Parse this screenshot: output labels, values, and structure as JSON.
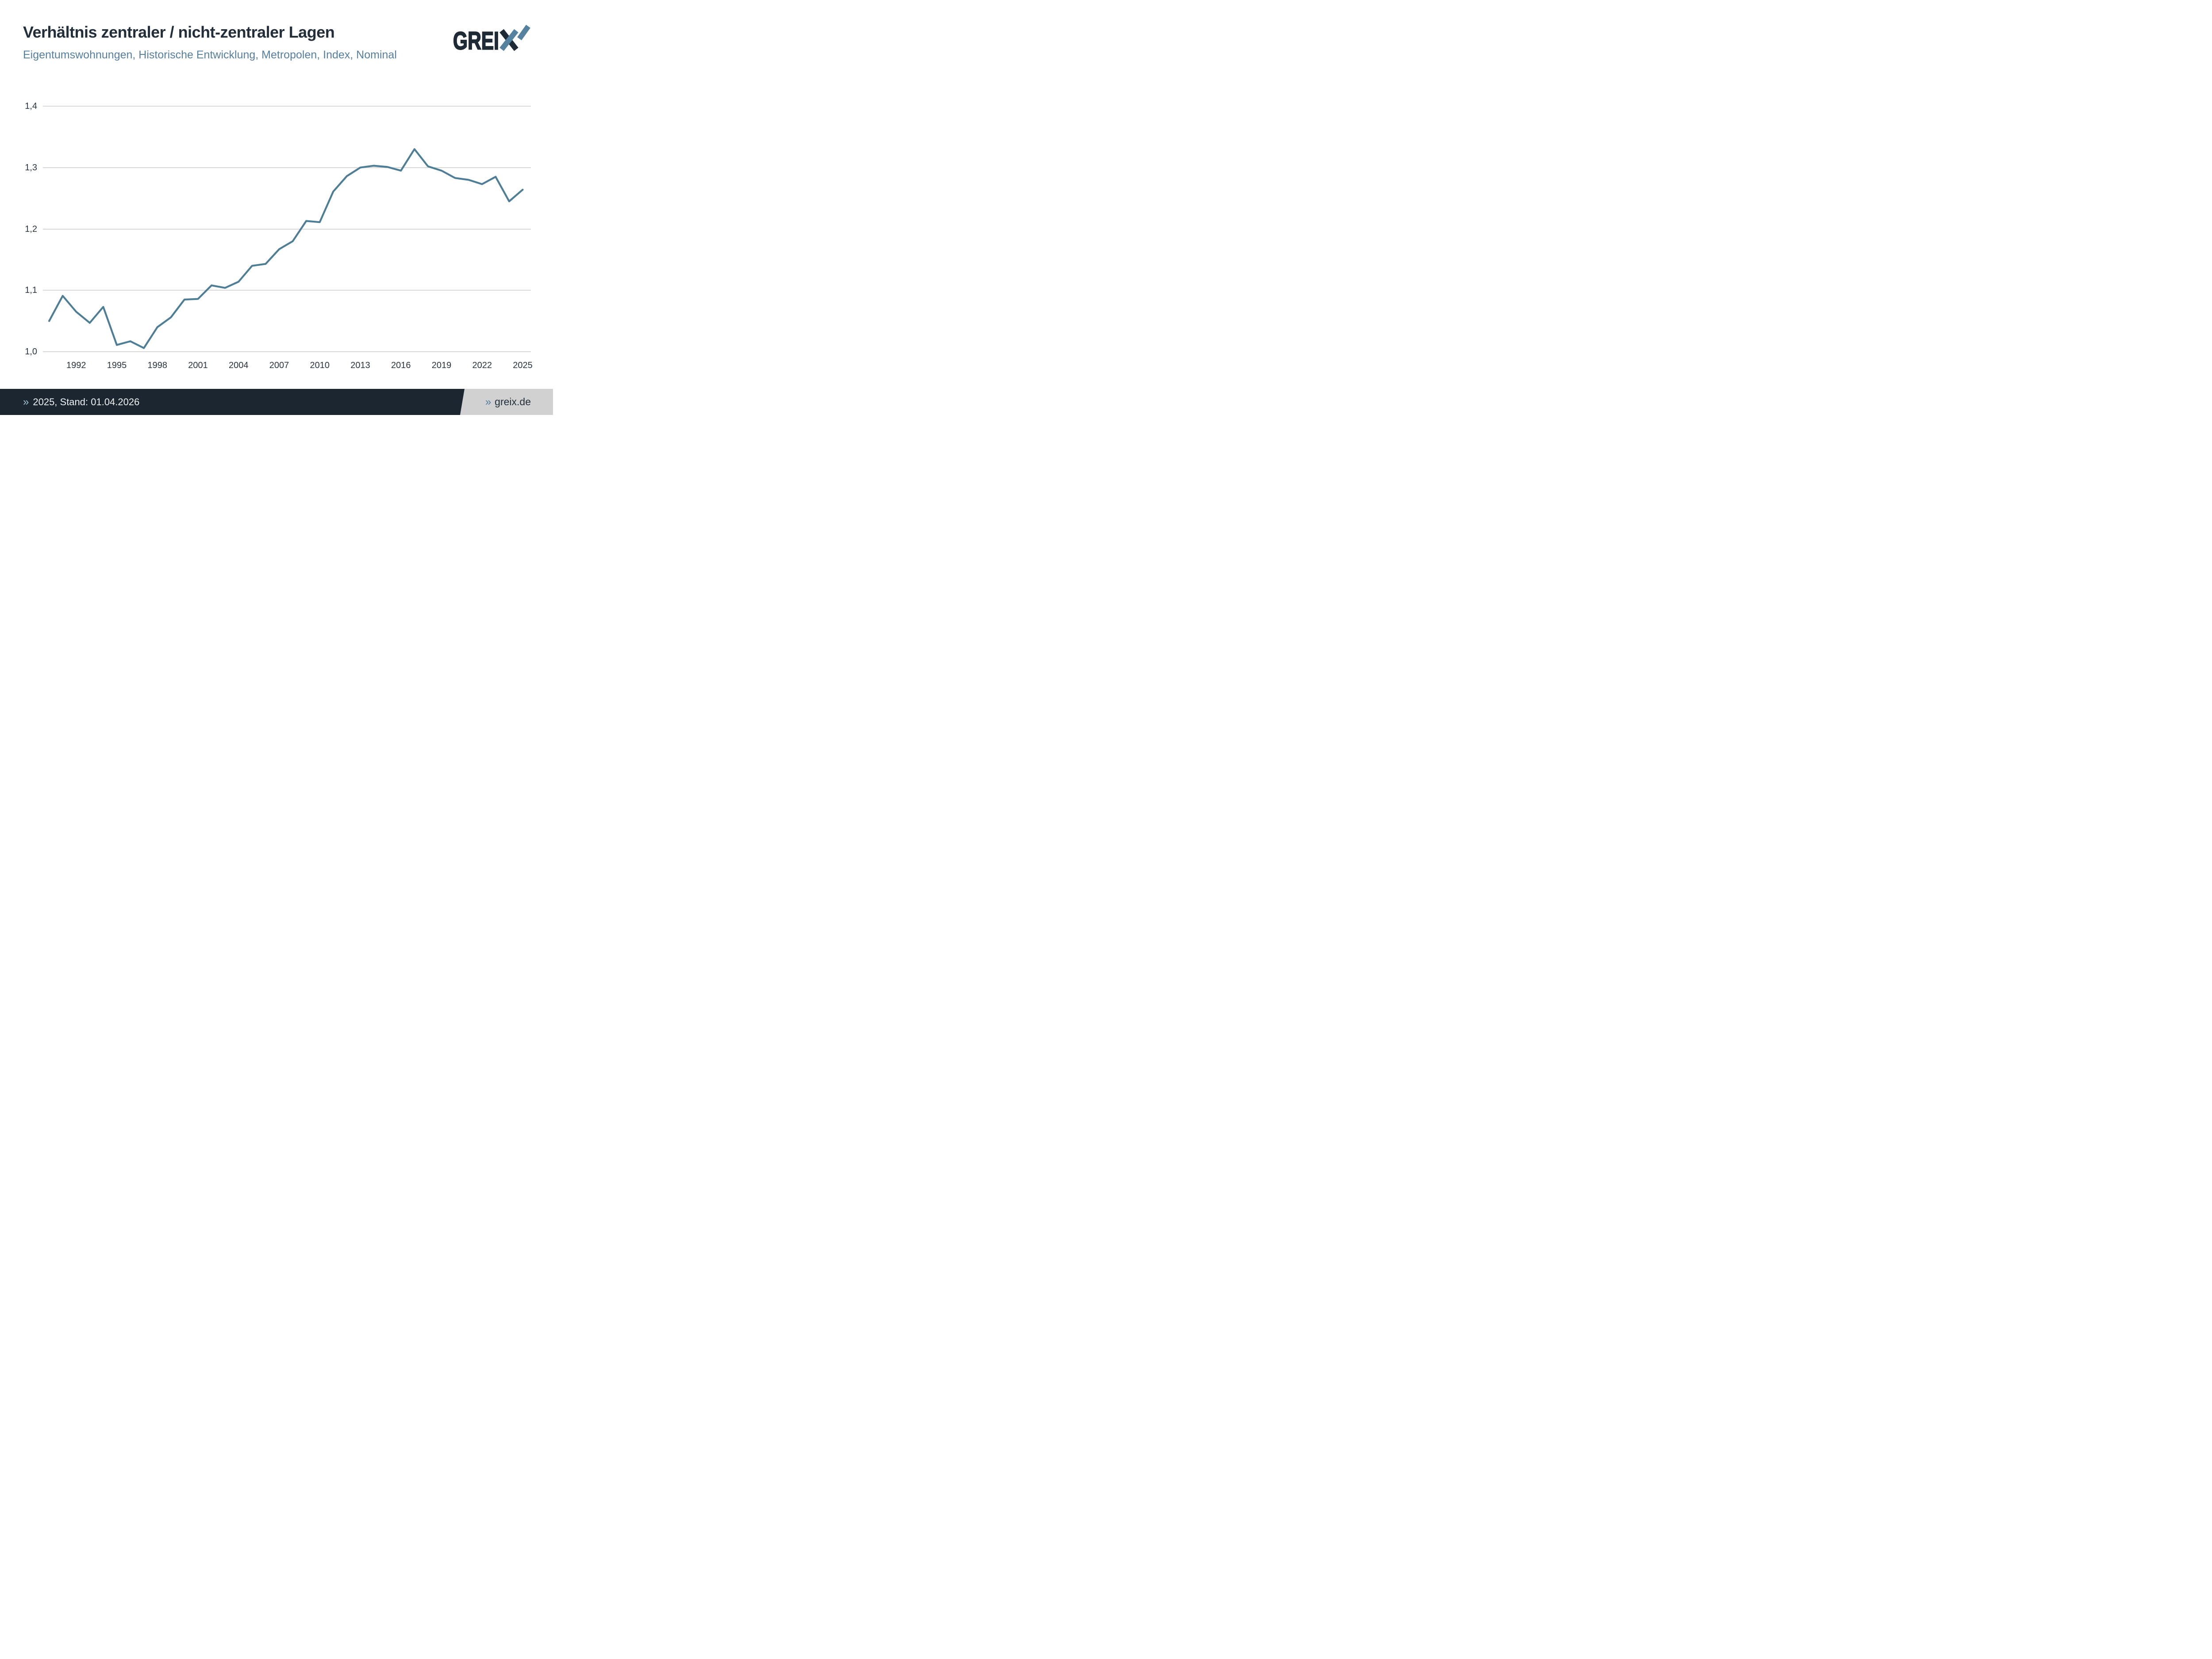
{
  "header": {
    "title": "Verhältnis zentraler / nicht-zentraler Lagen",
    "subtitle": "Eigentumswohnungen, Historische Entwicklung, Metropolen, Index, Nominal",
    "logo": {
      "text_main": "GREI",
      "text_x": "X",
      "brand": "GREIX"
    }
  },
  "chart_data": {
    "type": "line",
    "title": "Verhältnis zentraler / nicht-zentraler Lagen",
    "subtitle": "Eigentumswohnungen, Historische Entwicklung, Metropolen, Index, Nominal",
    "series_name": "Index Verhältnis zentraler / nicht-zentraler Lagen",
    "x": [
      1990,
      1991,
      1992,
      1993,
      1994,
      1995,
      1996,
      1997,
      1998,
      1999,
      2000,
      2001,
      2002,
      2003,
      2004,
      2005,
      2006,
      2007,
      2008,
      2009,
      2010,
      2011,
      2012,
      2013,
      2014,
      2015,
      2016,
      2017,
      2018,
      2019,
      2020,
      2021,
      2022,
      2023,
      2024,
      2025
    ],
    "values": [
      1.05,
      1.091,
      1.065,
      1.047,
      1.073,
      1.011,
      1.017,
      1.006,
      1.04,
      1.056,
      1.085,
      1.086,
      1.108,
      1.104,
      1.114,
      1.14,
      1.143,
      1.167,
      1.18,
      1.213,
      1.211,
      1.261,
      1.286,
      1.3,
      1.303,
      1.301,
      1.295,
      1.33,
      1.302,
      1.295,
      1.283,
      1.28,
      1.273,
      1.285,
      1.245,
      1.264
    ],
    "ylim": [
      1.0,
      1.4
    ],
    "y_ticks": [
      {
        "value": 1.0,
        "label": "1,0"
      },
      {
        "value": 1.1,
        "label": "1,1"
      },
      {
        "value": 1.2,
        "label": "1,2"
      },
      {
        "value": 1.3,
        "label": "1,3"
      },
      {
        "value": 1.4,
        "label": "1,4"
      }
    ],
    "x_ticks": [
      1992,
      1995,
      1998,
      2001,
      2004,
      2007,
      2010,
      2013,
      2016,
      2019,
      2022,
      2025
    ],
    "grid": "horizontal",
    "legend": "none",
    "line_color": "#4e7d96",
    "grid_color": "#d8d8d8"
  },
  "footer": {
    "left_chevron": "»",
    "left_text": "2025, Stand: 01.04.2026",
    "right_chevron": "»",
    "right_text": "greix.de"
  },
  "colors": {
    "title": "#222e3a",
    "subtitle": "#567f9e",
    "axis_labels": "#2a3540",
    "footer_bar": "#1c2631",
    "footer_right_bg": "#d1d1d1",
    "logo_dark": "#1e2a36",
    "logo_blue": "#54829f"
  }
}
